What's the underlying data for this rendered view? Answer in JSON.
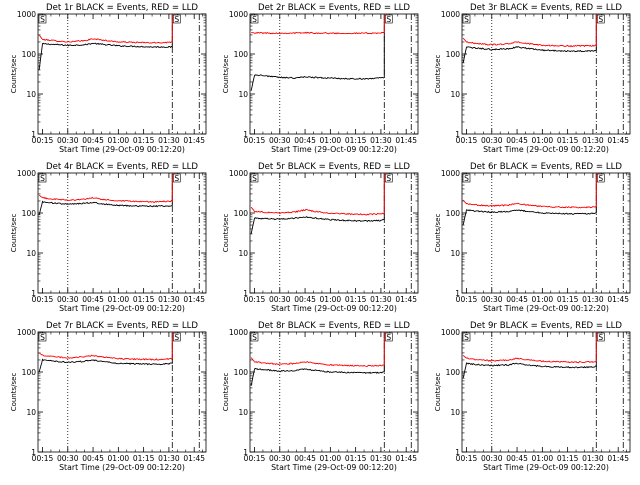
{
  "colors": {
    "events": "#000000",
    "lld": "#ff0000",
    "axes": "#000000"
  },
  "chart_data": [
    {
      "type": "line",
      "title": "Det 1r BLACK = Events, RED = LLD",
      "xlabel": "Start Time (29-Oct-09 00:12:20)",
      "ylabel": "Counts/sec",
      "yscale": "log",
      "ylim": [
        1,
        1000
      ],
      "y_ticks": [
        "1",
        "10",
        "100",
        "1000"
      ],
      "xlim": [
        "00:12:20",
        "01:52:00"
      ],
      "x_ticks": [
        "00:15",
        "00:30",
        "00:45",
        "01:00",
        "01:15",
        "01:30",
        "01:45"
      ],
      "corner_marker": "S",
      "vlines": [
        {
          "x": "00:30",
          "style": "dotted"
        },
        {
          "x": "01:32",
          "style": "dashdot"
        },
        {
          "x": "01:48",
          "style": "dashdot"
        }
      ],
      "series": [
        {
          "name": "Events",
          "color": "#000000",
          "x": [
            "00:13",
            "00:15",
            "00:20",
            "00:30",
            "00:40",
            "00:45",
            "00:50",
            "01:00",
            "01:10",
            "01:20",
            "01:30",
            "01:32",
            "01:33"
          ],
          "y": [
            40,
            180,
            175,
            165,
            170,
            185,
            175,
            160,
            155,
            150,
            150,
            150,
            1000
          ]
        },
        {
          "name": "LLD",
          "color": "#ff0000",
          "x": [
            "00:13",
            "00:15",
            "00:20",
            "00:30",
            "00:40",
            "00:45",
            "00:50",
            "01:00",
            "01:10",
            "01:20",
            "01:30",
            "01:32",
            "01:33"
          ],
          "y": [
            300,
            230,
            220,
            200,
            215,
            240,
            225,
            200,
            195,
            190,
            195,
            200,
            1000
          ]
        }
      ]
    },
    {
      "type": "line",
      "title": "Det 2r BLACK = Events, RED = LLD",
      "xlabel": "Start Time (29-Oct-09 00:12:20)",
      "ylabel": "Counts/sec",
      "yscale": "log",
      "ylim": [
        1,
        1000
      ],
      "y_ticks": [
        "1",
        "10",
        "100",
        "1000"
      ],
      "xlim": [
        "00:12:20",
        "01:52:00"
      ],
      "x_ticks": [
        "00:15",
        "00:30",
        "00:45",
        "01:00",
        "01:15",
        "01:30",
        "01:45"
      ],
      "corner_marker": "S",
      "vlines": [
        {
          "x": "00:30",
          "style": "dotted"
        },
        {
          "x": "01:32",
          "style": "dashdot"
        },
        {
          "x": "01:48",
          "style": "dashdot"
        }
      ],
      "series": [
        {
          "name": "Events",
          "color": "#000000",
          "x": [
            "00:13",
            "00:15",
            "00:20",
            "00:30",
            "00:40",
            "00:45",
            "00:50",
            "01:00",
            "01:10",
            "01:20",
            "01:30",
            "01:32",
            "01:33"
          ],
          "y": [
            12,
            30,
            29,
            26,
            25,
            27,
            26,
            25,
            24,
            24,
            25,
            26,
            1000
          ]
        },
        {
          "name": "LLD",
          "color": "#ff0000",
          "x": [
            "00:13",
            "00:15",
            "00:20",
            "00:30",
            "00:40",
            "00:45",
            "00:50",
            "01:00",
            "01:10",
            "01:20",
            "01:30",
            "01:32",
            "01:33"
          ],
          "y": [
            340,
            340,
            335,
            330,
            335,
            340,
            335,
            330,
            330,
            330,
            335,
            340,
            1000
          ]
        }
      ]
    },
    {
      "type": "line",
      "title": "Det 3r BLACK = Events, RED = LLD",
      "xlabel": "Start Time (29-Oct-09 00:12:20)",
      "ylabel": "Counts/sec",
      "yscale": "log",
      "ylim": [
        1,
        1000
      ],
      "y_ticks": [
        "1",
        "10",
        "100",
        "1000"
      ],
      "xlim": [
        "00:12:20",
        "01:52:00"
      ],
      "x_ticks": [
        "00:15",
        "00:30",
        "00:45",
        "01:00",
        "01:15",
        "01:30",
        "01:45"
      ],
      "corner_marker": "S",
      "vlines": [
        {
          "x": "00:30",
          "style": "dotted"
        },
        {
          "x": "01:32",
          "style": "dashdot"
        },
        {
          "x": "01:48",
          "style": "dashdot"
        }
      ],
      "series": [
        {
          "name": "Events",
          "color": "#000000",
          "x": [
            "00:13",
            "00:15",
            "00:20",
            "00:30",
            "00:40",
            "00:45",
            "00:50",
            "01:00",
            "01:10",
            "01:20",
            "01:30",
            "01:32",
            "01:33"
          ],
          "y": [
            60,
            150,
            140,
            130,
            135,
            150,
            140,
            125,
            120,
            118,
            120,
            125,
            1000
          ]
        },
        {
          "name": "LLD",
          "color": "#ff0000",
          "x": [
            "00:13",
            "00:15",
            "00:20",
            "00:30",
            "00:40",
            "00:45",
            "00:50",
            "01:00",
            "01:10",
            "01:20",
            "01:30",
            "01:32",
            "01:33"
          ],
          "y": [
            250,
            200,
            185,
            170,
            180,
            200,
            185,
            165,
            160,
            158,
            160,
            165,
            1000
          ]
        }
      ]
    },
    {
      "type": "line",
      "title": "Det 4r BLACK = Events, RED = LLD",
      "xlabel": "Start Time (29-Oct-09 00:12:20)",
      "ylabel": "Counts/sec",
      "yscale": "log",
      "ylim": [
        1,
        1000
      ],
      "y_ticks": [
        "1",
        "10",
        "100",
        "1000"
      ],
      "xlim": [
        "00:12:20",
        "01:52:00"
      ],
      "x_ticks": [
        "00:15",
        "00:30",
        "00:45",
        "01:00",
        "01:15",
        "01:30",
        "01:45"
      ],
      "corner_marker": "S",
      "vlines": [
        {
          "x": "00:30",
          "style": "dotted"
        },
        {
          "x": "01:32",
          "style": "dashdot"
        },
        {
          "x": "01:48",
          "style": "dashdot"
        }
      ],
      "series": [
        {
          "name": "Events",
          "color": "#000000",
          "x": [
            "00:13",
            "00:15",
            "00:20",
            "00:30",
            "00:40",
            "00:45",
            "00:50",
            "01:00",
            "01:10",
            "01:20",
            "01:30",
            "01:32",
            "01:33"
          ],
          "y": [
            90,
            190,
            180,
            165,
            175,
            185,
            170,
            155,
            150,
            148,
            150,
            155,
            1000
          ]
        },
        {
          "name": "LLD",
          "color": "#ff0000",
          "x": [
            "00:13",
            "00:15",
            "00:20",
            "00:30",
            "00:40",
            "00:45",
            "00:50",
            "01:00",
            "01:10",
            "01:20",
            "01:30",
            "01:32",
            "01:33"
          ],
          "y": [
            280,
            240,
            225,
            210,
            220,
            240,
            220,
            200,
            195,
            190,
            195,
            200,
            1000
          ]
        }
      ]
    },
    {
      "type": "line",
      "title": "Det 5r BLACK = Events, RED = LLD",
      "xlabel": "Start Time (29-Oct-09 00:12:20)",
      "ylabel": "Counts/sec",
      "yscale": "log",
      "ylim": [
        1,
        1000
      ],
      "y_ticks": [
        "1",
        "10",
        "100",
        "1000"
      ],
      "xlim": [
        "00:12:20",
        "01:52:00"
      ],
      "x_ticks": [
        "00:15",
        "00:30",
        "00:45",
        "01:00",
        "01:15",
        "01:30",
        "01:45"
      ],
      "corner_marker": "S",
      "vlines": [
        {
          "x": "00:30",
          "style": "dotted"
        },
        {
          "x": "01:32",
          "style": "dashdot"
        },
        {
          "x": "01:48",
          "style": "dashdot"
        }
      ],
      "series": [
        {
          "name": "Events",
          "color": "#000000",
          "x": [
            "00:13",
            "00:15",
            "00:20",
            "00:30",
            "00:40",
            "00:45",
            "00:50",
            "01:00",
            "01:10",
            "01:20",
            "01:30",
            "01:32",
            "01:33"
          ],
          "y": [
            30,
            75,
            72,
            70,
            75,
            80,
            75,
            68,
            65,
            63,
            65,
            70,
            1000
          ]
        },
        {
          "name": "LLD",
          "color": "#ff0000",
          "x": [
            "00:13",
            "00:15",
            "00:20",
            "00:30",
            "00:40",
            "00:45",
            "00:50",
            "01:00",
            "01:10",
            "01:20",
            "01:30",
            "01:32",
            "01:33"
          ],
          "y": [
            140,
            110,
            105,
            100,
            108,
            120,
            110,
            98,
            95,
            92,
            95,
            100,
            1000
          ]
        }
      ]
    },
    {
      "type": "line",
      "title": "Det 6r BLACK = Events, RED = LLD",
      "xlabel": "Start Time (29-Oct-09 00:12:20)",
      "ylabel": "Counts/sec",
      "yscale": "log",
      "ylim": [
        1,
        1000
      ],
      "y_ticks": [
        "1",
        "10",
        "100",
        "1000"
      ],
      "xlim": [
        "00:12:20",
        "01:52:00"
      ],
      "x_ticks": [
        "00:15",
        "00:30",
        "00:45",
        "01:00",
        "01:15",
        "01:30",
        "01:45"
      ],
      "corner_marker": "S",
      "vlines": [
        {
          "x": "00:30",
          "style": "dotted"
        },
        {
          "x": "01:32",
          "style": "dashdot"
        },
        {
          "x": "01:48",
          "style": "dashdot"
        }
      ],
      "series": [
        {
          "name": "Events",
          "color": "#000000",
          "x": [
            "00:13",
            "00:15",
            "00:20",
            "00:30",
            "00:40",
            "00:45",
            "00:50",
            "01:00",
            "01:10",
            "01:20",
            "01:30",
            "01:32",
            "01:33"
          ],
          "y": [
            50,
            120,
            112,
            105,
            110,
            120,
            112,
            100,
            97,
            95,
            97,
            100,
            1000
          ]
        },
        {
          "name": "LLD",
          "color": "#ff0000",
          "x": [
            "00:13",
            "00:15",
            "00:20",
            "00:30",
            "00:40",
            "00:45",
            "00:50",
            "01:00",
            "01:10",
            "01:20",
            "01:30",
            "01:32",
            "01:33"
          ],
          "y": [
            210,
            170,
            160,
            150,
            158,
            175,
            162,
            145,
            140,
            138,
            140,
            145,
            1000
          ]
        }
      ]
    },
    {
      "type": "line",
      "title": "Det 7r BLACK = Events, RED = LLD",
      "xlabel": "Start Time (29-Oct-09 00:12:20)",
      "ylabel": "Counts/sec",
      "yscale": "log",
      "ylim": [
        1,
        1000
      ],
      "y_ticks": [
        "1",
        "10",
        "100",
        "1000"
      ],
      "xlim": [
        "00:12:20",
        "01:52:00"
      ],
      "x_ticks": [
        "00:15",
        "00:30",
        "00:45",
        "01:00",
        "01:15",
        "01:30",
        "01:45"
      ],
      "corner_marker": "S",
      "vlines": [
        {
          "x": "00:30",
          "style": "dotted"
        },
        {
          "x": "01:32",
          "style": "dashdot"
        },
        {
          "x": "01:48",
          "style": "dashdot"
        }
      ],
      "series": [
        {
          "name": "Events",
          "color": "#000000",
          "x": [
            "00:13",
            "00:15",
            "00:20",
            "00:30",
            "00:40",
            "00:45",
            "00:50",
            "01:00",
            "01:10",
            "01:20",
            "01:30",
            "01:32",
            "01:33"
          ],
          "y": [
            100,
            200,
            190,
            175,
            185,
            200,
            185,
            165,
            160,
            155,
            160,
            165,
            1000
          ]
        },
        {
          "name": "LLD",
          "color": "#ff0000",
          "x": [
            "00:13",
            "00:15",
            "00:20",
            "00:30",
            "00:40",
            "00:45",
            "00:50",
            "01:00",
            "01:10",
            "01:20",
            "01:30",
            "01:32",
            "01:33"
          ],
          "y": [
            300,
            260,
            245,
            225,
            240,
            260,
            240,
            215,
            210,
            205,
            210,
            215,
            1000
          ]
        }
      ]
    },
    {
      "type": "line",
      "title": "Det 8r BLACK = Events, RED = LLD",
      "xlabel": "Start Time (29-Oct-09 00:12:20)",
      "ylabel": "Counts/sec",
      "yscale": "log",
      "ylim": [
        1,
        1000
      ],
      "y_ticks": [
        "1",
        "10",
        "100",
        "1000"
      ],
      "xlim": [
        "00:12:20",
        "01:52:00"
      ],
      "x_ticks": [
        "00:15",
        "00:30",
        "00:45",
        "01:00",
        "01:15",
        "01:30",
        "01:45"
      ],
      "corner_marker": "S",
      "vlines": [
        {
          "x": "00:30",
          "style": "dotted"
        },
        {
          "x": "01:32",
          "style": "dashdot"
        },
        {
          "x": "01:48",
          "style": "dashdot"
        }
      ],
      "series": [
        {
          "name": "Events",
          "color": "#000000",
          "x": [
            "00:13",
            "00:15",
            "00:20",
            "00:30",
            "00:40",
            "00:45",
            "00:50",
            "01:00",
            "01:10",
            "01:20",
            "01:30",
            "01:32",
            "01:33"
          ],
          "y": [
            45,
            120,
            115,
            105,
            110,
            120,
            110,
            100,
            97,
            95,
            97,
            100,
            1000
          ]
        },
        {
          "name": "LLD",
          "color": "#ff0000",
          "x": [
            "00:13",
            "00:15",
            "00:20",
            "00:30",
            "00:40",
            "00:45",
            "00:50",
            "01:00",
            "01:10",
            "01:20",
            "01:30",
            "01:32",
            "01:33"
          ],
          "y": [
            230,
            180,
            170,
            155,
            165,
            180,
            168,
            150,
            145,
            142,
            145,
            150,
            1000
          ]
        }
      ]
    },
    {
      "type": "line",
      "title": "Det 9r BLACK = Events, RED = LLD",
      "xlabel": "Start Time (29-Oct-09 00:12:20)",
      "ylabel": "Counts/sec",
      "yscale": "log",
      "ylim": [
        1,
        1000
      ],
      "y_ticks": [
        "1",
        "10",
        "100",
        "1000"
      ],
      "xlim": [
        "00:12:20",
        "01:52:00"
      ],
      "x_ticks": [
        "00:15",
        "00:30",
        "00:45",
        "01:00",
        "01:15",
        "01:30",
        "01:45"
      ],
      "corner_marker": "S",
      "vlines": [
        {
          "x": "00:30",
          "style": "dotted"
        },
        {
          "x": "01:32",
          "style": "dashdot"
        },
        {
          "x": "01:48",
          "style": "dashdot"
        }
      ],
      "series": [
        {
          "name": "Events",
          "color": "#000000",
          "x": [
            "00:13",
            "00:15",
            "00:20",
            "00:30",
            "00:40",
            "00:45",
            "00:50",
            "01:00",
            "01:10",
            "01:20",
            "01:30",
            "01:32",
            "01:33"
          ],
          "y": [
            70,
            165,
            155,
            145,
            150,
            165,
            152,
            138,
            133,
            130,
            133,
            138,
            1000
          ]
        },
        {
          "name": "LLD",
          "color": "#ff0000",
          "x": [
            "00:13",
            "00:15",
            "00:20",
            "00:30",
            "00:40",
            "00:45",
            "00:50",
            "01:00",
            "01:10",
            "01:20",
            "01:30",
            "01:32",
            "01:33"
          ],
          "y": [
            260,
            220,
            205,
            190,
            200,
            220,
            205,
            185,
            180,
            175,
            180,
            185,
            1000
          ]
        }
      ]
    }
  ]
}
